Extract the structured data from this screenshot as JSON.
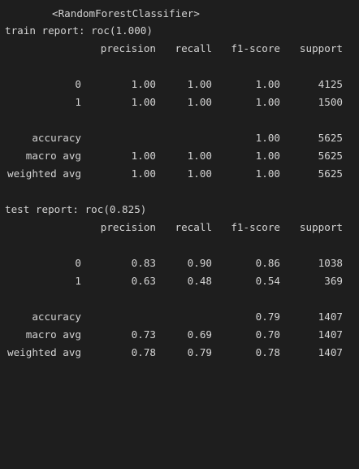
{
  "output": {
    "model_name": "<RandomForestClassifier>",
    "train": {
      "title": "train report: roc(1.000)",
      "headers": [
        "precision",
        "recall",
        "f1-score",
        "support"
      ],
      "class_rows": [
        {
          "label": "0",
          "precision": "1.00",
          "recall": "1.00",
          "f1": "1.00",
          "support": "4125"
        },
        {
          "label": "1",
          "precision": "1.00",
          "recall": "1.00",
          "f1": "1.00",
          "support": "1500"
        }
      ],
      "summary_rows": [
        {
          "label": "accuracy",
          "precision": "",
          "recall": "",
          "f1": "1.00",
          "support": "5625"
        },
        {
          "label": "macro avg",
          "precision": "1.00",
          "recall": "1.00",
          "f1": "1.00",
          "support": "5625"
        },
        {
          "label": "weighted avg",
          "precision": "1.00",
          "recall": "1.00",
          "f1": "1.00",
          "support": "5625"
        }
      ]
    },
    "test": {
      "title": "test report: roc(0.825)",
      "headers": [
        "precision",
        "recall",
        "f1-score",
        "support"
      ],
      "class_rows": [
        {
          "label": "0",
          "precision": "0.83",
          "recall": "0.90",
          "f1": "0.86",
          "support": "1038"
        },
        {
          "label": "1",
          "precision": "0.63",
          "recall": "0.48",
          "f1": "0.54",
          "support": "369"
        }
      ],
      "summary_rows": [
        {
          "label": "accuracy",
          "precision": "",
          "recall": "",
          "f1": "0.79",
          "support": "1407"
        },
        {
          "label": "macro avg",
          "precision": "0.73",
          "recall": "0.69",
          "f1": "0.70",
          "support": "1407"
        },
        {
          "label": "weighted avg",
          "precision": "0.78",
          "recall": "0.79",
          "f1": "0.78",
          "support": "1407"
        }
      ]
    }
  },
  "colors": {
    "background": "#1e1e1e",
    "text": "#d4d4d4"
  }
}
